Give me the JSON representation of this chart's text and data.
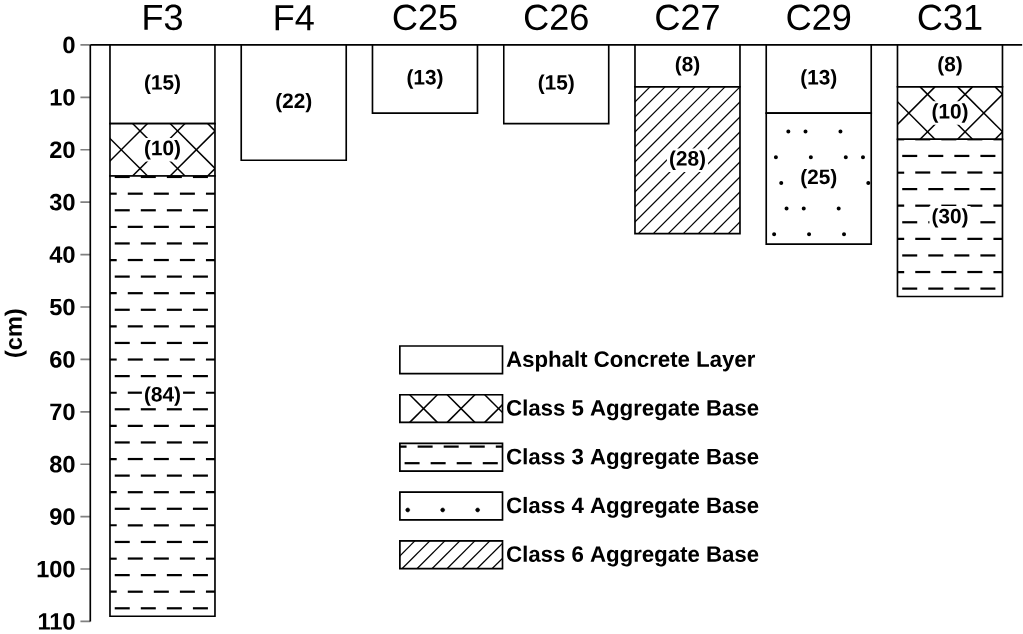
{
  "chart_data": {
    "type": "bar",
    "stacked": true,
    "ylabel": "(cm)",
    "categories": [
      "F3",
      "F4",
      "C25",
      "C26",
      "C27",
      "C29",
      "C31"
    ],
    "series": [
      {
        "name": "Asphalt Concrete Layer",
        "color": "#ffffff",
        "values": [
          15,
          22,
          13,
          15,
          8,
          13,
          8
        ],
        "value_labels": [
          "(15)",
          "(22)",
          "(13)",
          "(15)",
          "(8)",
          "(13)",
          "(8)"
        ]
      },
      {
        "name": "Class 5 Aggregate Base",
        "color": "#000000",
        "values": [
          10,
          null,
          null,
          null,
          null,
          null,
          10
        ],
        "value_labels": [
          "(10)",
          null,
          null,
          null,
          null,
          null,
          "(10)"
        ]
      },
      {
        "name": "Class 3 Aggregate Base",
        "color": "#000000",
        "values": [
          84,
          null,
          null,
          null,
          null,
          null,
          30
        ],
        "value_labels": [
          "(84)",
          null,
          null,
          null,
          null,
          null,
          "(30)"
        ]
      },
      {
        "name": "Class 4 Aggregate Base",
        "color": "#000000",
        "values": [
          null,
          null,
          null,
          null,
          null,
          25,
          null
        ],
        "value_labels": [
          null,
          null,
          null,
          null,
          null,
          "(25)",
          null
        ]
      },
      {
        "name": "Class 6 Aggregate Base",
        "color": "#000000",
        "values": [
          null,
          null,
          null,
          null,
          28,
          null,
          null
        ],
        "value_labels": [
          null,
          null,
          null,
          null,
          "(28)",
          null,
          null
        ]
      }
    ],
    "ylim": [
      110,
      0
    ],
    "yticks": [
      0,
      10,
      20,
      30,
      40,
      50,
      60,
      70,
      80,
      90,
      100,
      110
    ],
    "grid": false,
    "legend": "bottom"
  }
}
